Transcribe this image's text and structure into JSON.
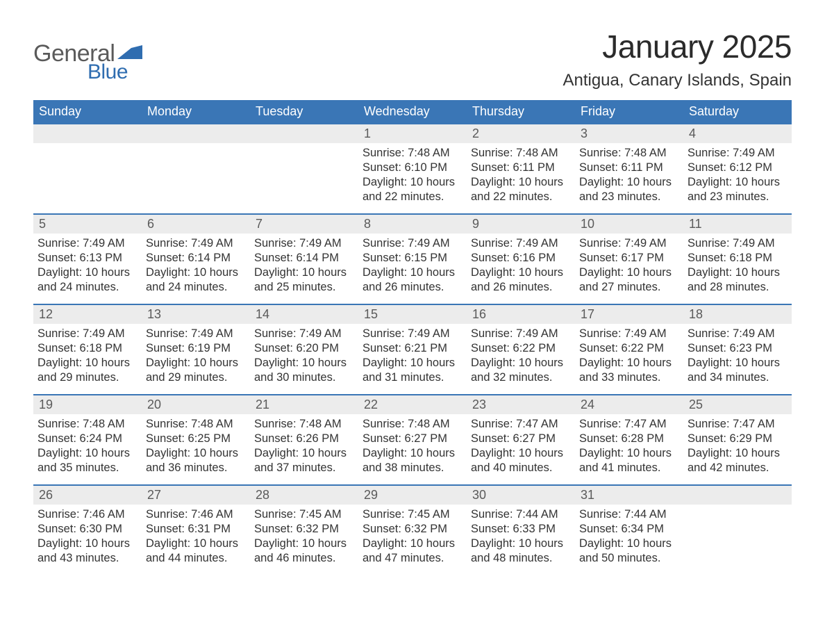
{
  "logo": {
    "general": "General",
    "blue": "Blue",
    "flag_color": "#2f6db0"
  },
  "title": "January 2025",
  "location": "Antigua, Canary Islands, Spain",
  "colors": {
    "header_bg": "#3a76b6",
    "header_text": "#ffffff",
    "row_divider": "#3a76b6",
    "daynum_bg": "#ececec",
    "daynum_text": "#5a5a5a",
    "body_text": "#333333",
    "logo_gray": "#5a5a5a",
    "logo_blue": "#2f6db0",
    "page_bg": "#ffffff"
  },
  "dow": [
    "Sunday",
    "Monday",
    "Tuesday",
    "Wednesday",
    "Thursday",
    "Friday",
    "Saturday"
  ],
  "labels": {
    "sunrise": "Sunrise: ",
    "sunset": "Sunset: ",
    "daylight": "Daylight: "
  },
  "weeks": [
    [
      {
        "blank": true
      },
      {
        "blank": true
      },
      {
        "blank": true
      },
      {
        "n": "1",
        "sr": "7:48 AM",
        "ss": "6:10 PM",
        "dl1": "10 hours",
        "dl2": "and 22 minutes."
      },
      {
        "n": "2",
        "sr": "7:48 AM",
        "ss": "6:11 PM",
        "dl1": "10 hours",
        "dl2": "and 22 minutes."
      },
      {
        "n": "3",
        "sr": "7:48 AM",
        "ss": "6:11 PM",
        "dl1": "10 hours",
        "dl2": "and 23 minutes."
      },
      {
        "n": "4",
        "sr": "7:49 AM",
        "ss": "6:12 PM",
        "dl1": "10 hours",
        "dl2": "and 23 minutes."
      }
    ],
    [
      {
        "n": "5",
        "sr": "7:49 AM",
        "ss": "6:13 PM",
        "dl1": "10 hours",
        "dl2": "and 24 minutes."
      },
      {
        "n": "6",
        "sr": "7:49 AM",
        "ss": "6:14 PM",
        "dl1": "10 hours",
        "dl2": "and 24 minutes."
      },
      {
        "n": "7",
        "sr": "7:49 AM",
        "ss": "6:14 PM",
        "dl1": "10 hours",
        "dl2": "and 25 minutes."
      },
      {
        "n": "8",
        "sr": "7:49 AM",
        "ss": "6:15 PM",
        "dl1": "10 hours",
        "dl2": "and 26 minutes."
      },
      {
        "n": "9",
        "sr": "7:49 AM",
        "ss": "6:16 PM",
        "dl1": "10 hours",
        "dl2": "and 26 minutes."
      },
      {
        "n": "10",
        "sr": "7:49 AM",
        "ss": "6:17 PM",
        "dl1": "10 hours",
        "dl2": "and 27 minutes."
      },
      {
        "n": "11",
        "sr": "7:49 AM",
        "ss": "6:18 PM",
        "dl1": "10 hours",
        "dl2": "and 28 minutes."
      }
    ],
    [
      {
        "n": "12",
        "sr": "7:49 AM",
        "ss": "6:18 PM",
        "dl1": "10 hours",
        "dl2": "and 29 minutes."
      },
      {
        "n": "13",
        "sr": "7:49 AM",
        "ss": "6:19 PM",
        "dl1": "10 hours",
        "dl2": "and 29 minutes."
      },
      {
        "n": "14",
        "sr": "7:49 AM",
        "ss": "6:20 PM",
        "dl1": "10 hours",
        "dl2": "and 30 minutes."
      },
      {
        "n": "15",
        "sr": "7:49 AM",
        "ss": "6:21 PM",
        "dl1": "10 hours",
        "dl2": "and 31 minutes."
      },
      {
        "n": "16",
        "sr": "7:49 AM",
        "ss": "6:22 PM",
        "dl1": "10 hours",
        "dl2": "and 32 minutes."
      },
      {
        "n": "17",
        "sr": "7:49 AM",
        "ss": "6:22 PM",
        "dl1": "10 hours",
        "dl2": "and 33 minutes."
      },
      {
        "n": "18",
        "sr": "7:49 AM",
        "ss": "6:23 PM",
        "dl1": "10 hours",
        "dl2": "and 34 minutes."
      }
    ],
    [
      {
        "n": "19",
        "sr": "7:48 AM",
        "ss": "6:24 PM",
        "dl1": "10 hours",
        "dl2": "and 35 minutes."
      },
      {
        "n": "20",
        "sr": "7:48 AM",
        "ss": "6:25 PM",
        "dl1": "10 hours",
        "dl2": "and 36 minutes."
      },
      {
        "n": "21",
        "sr": "7:48 AM",
        "ss": "6:26 PM",
        "dl1": "10 hours",
        "dl2": "and 37 minutes."
      },
      {
        "n": "22",
        "sr": "7:48 AM",
        "ss": "6:27 PM",
        "dl1": "10 hours",
        "dl2": "and 38 minutes."
      },
      {
        "n": "23",
        "sr": "7:47 AM",
        "ss": "6:27 PM",
        "dl1": "10 hours",
        "dl2": "and 40 minutes."
      },
      {
        "n": "24",
        "sr": "7:47 AM",
        "ss": "6:28 PM",
        "dl1": "10 hours",
        "dl2": "and 41 minutes."
      },
      {
        "n": "25",
        "sr": "7:47 AM",
        "ss": "6:29 PM",
        "dl1": "10 hours",
        "dl2": "and 42 minutes."
      }
    ],
    [
      {
        "n": "26",
        "sr": "7:46 AM",
        "ss": "6:30 PM",
        "dl1": "10 hours",
        "dl2": "and 43 minutes."
      },
      {
        "n": "27",
        "sr": "7:46 AM",
        "ss": "6:31 PM",
        "dl1": "10 hours",
        "dl2": "and 44 minutes."
      },
      {
        "n": "28",
        "sr": "7:45 AM",
        "ss": "6:32 PM",
        "dl1": "10 hours",
        "dl2": "and 46 minutes."
      },
      {
        "n": "29",
        "sr": "7:45 AM",
        "ss": "6:32 PM",
        "dl1": "10 hours",
        "dl2": "and 47 minutes."
      },
      {
        "n": "30",
        "sr": "7:44 AM",
        "ss": "6:33 PM",
        "dl1": "10 hours",
        "dl2": "and 48 minutes."
      },
      {
        "n": "31",
        "sr": "7:44 AM",
        "ss": "6:34 PM",
        "dl1": "10 hours",
        "dl2": "and 50 minutes."
      },
      {
        "blank": true
      }
    ]
  ]
}
